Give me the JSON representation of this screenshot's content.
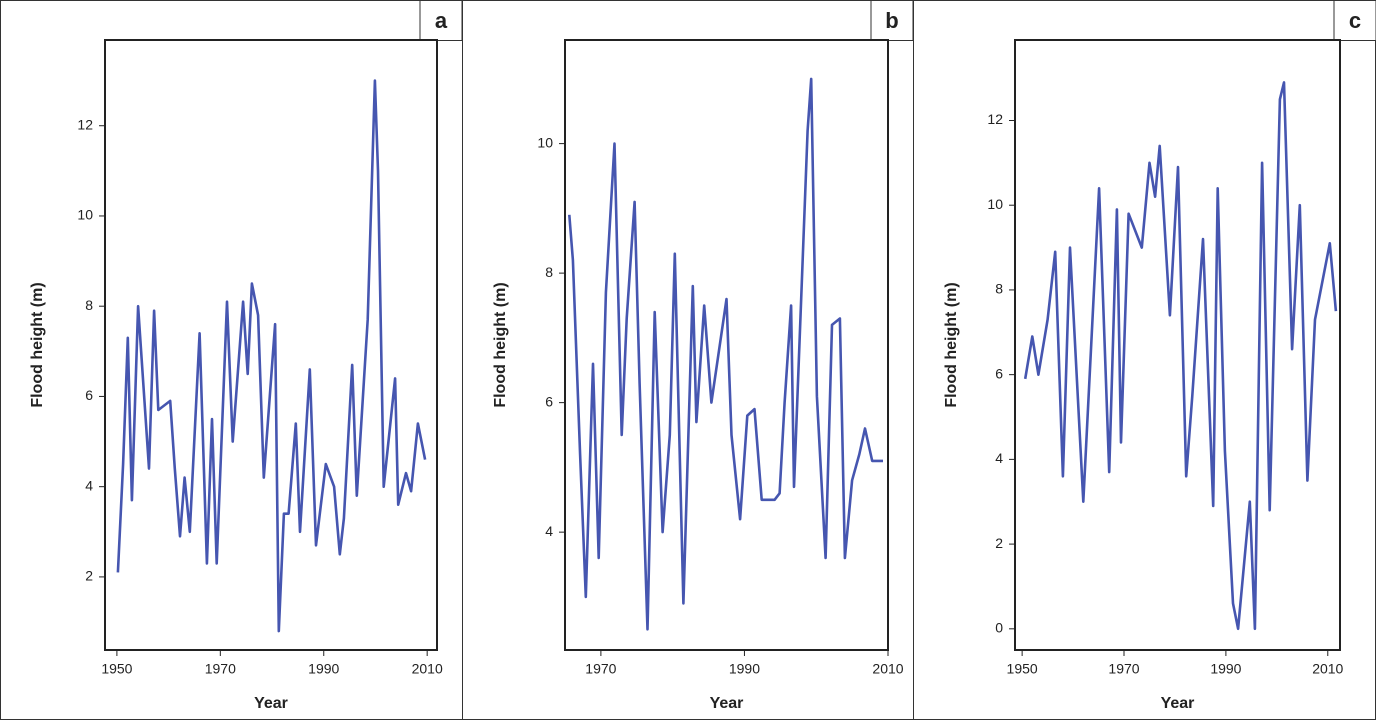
{
  "chart_data": [
    {
      "type": "line",
      "label": "a",
      "xlabel": "Year",
      "ylabel": "Flood height (m)",
      "color": "#4656b0",
      "xlim": [
        1947.7,
        2011.9
      ],
      "ylim": [
        0.38,
        13.9
      ],
      "xticks": [
        1950,
        1970,
        1990,
        2010
      ],
      "yticks": [
        2,
        4,
        6,
        8,
        10,
        12
      ],
      "x": [
        1950.2,
        1951.2,
        1952.1,
        1952.9,
        1954.1,
        1956.2,
        1957.2,
        1958.0,
        1960.3,
        1961.2,
        1962.2,
        1963.1,
        1964.1,
        1966.0,
        1967.4,
        1968.4,
        1969.3,
        1971.3,
        1972.4,
        1974.4,
        1975.3,
        1976.1,
        1977.3,
        1978.4,
        1980.6,
        1981.3,
        1982.3,
        1983.2,
        1984.6,
        1985.4,
        1987.3,
        1988.5,
        1990.4,
        1992.0,
        1993.1,
        1993.9,
        1995.5,
        1996.4,
        1998.5,
        1999.9,
        2000.5,
        2001.6,
        2003.8,
        2004.4,
        2005.9,
        2006.9,
        2008.2,
        2009.6
      ],
      "values": [
        2.1,
        4.5,
        7.3,
        3.7,
        8.0,
        4.4,
        7.9,
        5.7,
        5.9,
        4.4,
        2.9,
        4.2,
        3.0,
        7.4,
        2.3,
        5.5,
        2.3,
        8.1,
        5.0,
        8.1,
        6.5,
        8.5,
        7.8,
        4.2,
        7.6,
        0.8,
        3.4,
        3.4,
        5.4,
        3.0,
        6.6,
        2.7,
        4.5,
        4.0,
        2.5,
        3.3,
        6.7,
        3.8,
        7.7,
        13.0,
        11.0,
        4.0,
        6.4,
        3.6,
        4.3,
        3.9,
        5.4,
        4.6
      ]
    },
    {
      "type": "line",
      "label": "b",
      "xlabel": "Year",
      "ylabel": "Flood height (m)",
      "color": "#4656b0",
      "xlim": [
        1965.0,
        2010.0
      ],
      "ylim": [
        2.18,
        11.6
      ],
      "xticks": [
        1970,
        1990,
        2010
      ],
      "yticks": [
        4,
        6,
        8,
        10
      ],
      "x": [
        1965.6,
        1966.1,
        1967.1,
        1967.9,
        1968.9,
        1969.7,
        1970.7,
        1971.9,
        1972.9,
        1973.6,
        1974.7,
        1975.4,
        1976.5,
        1977.5,
        1978.6,
        1979.6,
        1980.3,
        1981.5,
        1982.8,
        1983.3,
        1984.4,
        1985.4,
        1987.5,
        1988.2,
        1989.4,
        1990.4,
        1991.4,
        1992.4,
        1994.2,
        1994.9,
        1995.6,
        1996.5,
        1996.9,
        1998.8,
        1999.3,
        2000.1,
        2001.3,
        2002.2,
        2003.3,
        2004.0,
        2005.0,
        2006.0,
        2006.8,
        2007.8,
        2009.3
      ],
      "values": [
        8.9,
        8.2,
        5.2,
        3.0,
        6.6,
        3.6,
        7.7,
        10.0,
        5.5,
        7.3,
        9.1,
        6.3,
        2.5,
        7.4,
        4.0,
        5.5,
        8.3,
        2.9,
        7.8,
        5.7,
        7.5,
        6.0,
        7.6,
        5.5,
        4.2,
        5.8,
        5.9,
        4.5,
        4.5,
        4.6,
        6.0,
        7.5,
        4.7,
        10.2,
        11.0,
        6.1,
        3.6,
        7.2,
        7.3,
        3.6,
        4.8,
        5.2,
        5.6,
        5.1,
        5.1
      ]
    },
    {
      "type": "line",
      "label": "c",
      "xlabel": "Year",
      "ylabel": "Flood height (m)",
      "color": "#4656b0",
      "xlim": [
        1948.6,
        2012.4
      ],
      "ylim": [
        -0.5,
        13.9
      ],
      "xticks": [
        1950,
        1970,
        1990,
        2010
      ],
      "yticks": [
        0,
        2,
        4,
        6,
        8,
        10,
        12
      ],
      "x": [
        1950.6,
        1952.0,
        1953.2,
        1955.0,
        1956.5,
        1958.0,
        1959.4,
        1962.0,
        1965.1,
        1967.1,
        1968.6,
        1969.4,
        1970.9,
        1973.5,
        1975.0,
        1976.1,
        1977.0,
        1979.0,
        1980.6,
        1982.2,
        1983.4,
        1985.5,
        1987.5,
        1988.4,
        1989.8,
        1991.4,
        1992.4,
        1994.7,
        1995.7,
        1997.1,
        1998.6,
        2000.6,
        2001.4,
        2003.0,
        2004.5,
        2006.0,
        2007.5,
        2010.4,
        2011.6
      ],
      "values": [
        5.9,
        6.9,
        6.0,
        7.3,
        8.9,
        3.6,
        9.0,
        3.0,
        10.4,
        3.7,
        9.9,
        4.4,
        9.8,
        9.0,
        11.0,
        10.2,
        11.4,
        7.4,
        10.9,
        3.6,
        5.5,
        9.2,
        2.9,
        10.4,
        4.2,
        0.6,
        0.0,
        3.0,
        0.0,
        11.0,
        2.8,
        12.5,
        12.9,
        6.6,
        10.0,
        3.5,
        7.3,
        9.1,
        7.5
      ]
    }
  ]
}
